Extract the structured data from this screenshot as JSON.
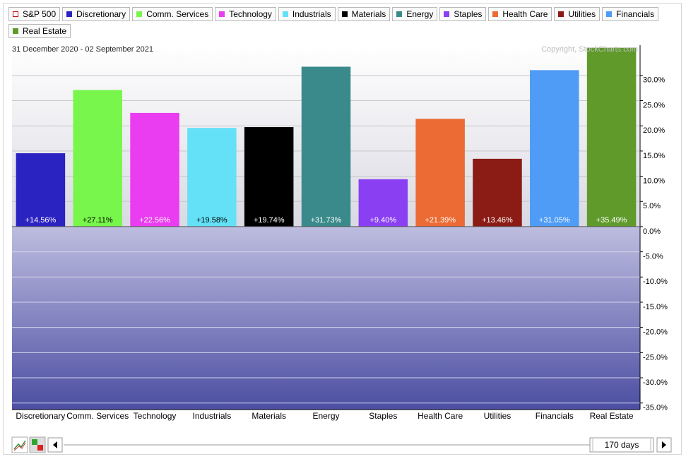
{
  "chart_data": {
    "type": "bar",
    "subtitle": "31 December 2020 - 02 September 2021",
    "annotation": "Copyright, StockCharts.com",
    "legend": [
      {
        "name": "S&P 500",
        "color": "#cc1111"
      },
      {
        "name": "Discretionary",
        "color": "#2b22c2"
      },
      {
        "name": "Comm. Services",
        "color": "#78f64b"
      },
      {
        "name": "Technology",
        "color": "#ea3cf0"
      },
      {
        "name": "Industrials",
        "color": "#64e1f6"
      },
      {
        "name": "Materials",
        "color": "#000000"
      },
      {
        "name": "Energy",
        "color": "#3a8a8b"
      },
      {
        "name": "Staples",
        "color": "#8a3ff2"
      },
      {
        "name": "Health Care",
        "color": "#ec6a33"
      },
      {
        "name": "Utilities",
        "color": "#8a1b15"
      },
      {
        "name": "Financials",
        "color": "#4e9cf5"
      },
      {
        "name": "Real Estate",
        "color": "#5f9a2b"
      }
    ],
    "categories": [
      "Discretionary",
      "Comm. Services",
      "Technology",
      "Industrials",
      "Materials",
      "Energy",
      "Staples",
      "Health Care",
      "Utilities",
      "Financials",
      "Real Estate"
    ],
    "values": [
      14.56,
      27.11,
      22.56,
      19.58,
      19.74,
      31.73,
      9.4,
      21.39,
      13.46,
      31.05,
      35.49
    ],
    "value_labels": [
      "+14.56%",
      "+27.11%",
      "+22.56%",
      "+19.58%",
      "+19.74%",
      "+31.73%",
      "+9.40%",
      "+21.39%",
      "+13.46%",
      "+31.05%",
      "+35.49%"
    ],
    "colors": [
      "#2b22c2",
      "#78f64b",
      "#ea3cf0",
      "#64e1f6",
      "#000000",
      "#3a8a8b",
      "#8a3ff2",
      "#ec6a33",
      "#8a1b15",
      "#4e9cf5",
      "#5f9a2b"
    ],
    "ylim": [
      -36.3,
      36.0
    ],
    "yticks": [
      {
        "value": 30,
        "label": "30.0%"
      },
      {
        "value": 25,
        "label": "25.0%"
      },
      {
        "value": 20,
        "label": "20.0%"
      },
      {
        "value": 15,
        "label": "15.0%"
      },
      {
        "value": 10,
        "label": "10.0%"
      },
      {
        "value": 5,
        "label": "5.0%"
      },
      {
        "value": 0,
        "label": "0.0%"
      },
      {
        "value": -5,
        "label": "-5.0%"
      },
      {
        "value": -10,
        "label": "-10.0%"
      },
      {
        "value": -15,
        "label": "-15.0%"
      },
      {
        "value": -20,
        "label": "-20.0%"
      },
      {
        "value": -25,
        "label": "-25.0%"
      },
      {
        "value": -30,
        "label": "-30.0%"
      },
      {
        "value": -35,
        "label": "-35.0%"
      }
    ],
    "grid": true
  },
  "controls": {
    "period": "170 days"
  }
}
